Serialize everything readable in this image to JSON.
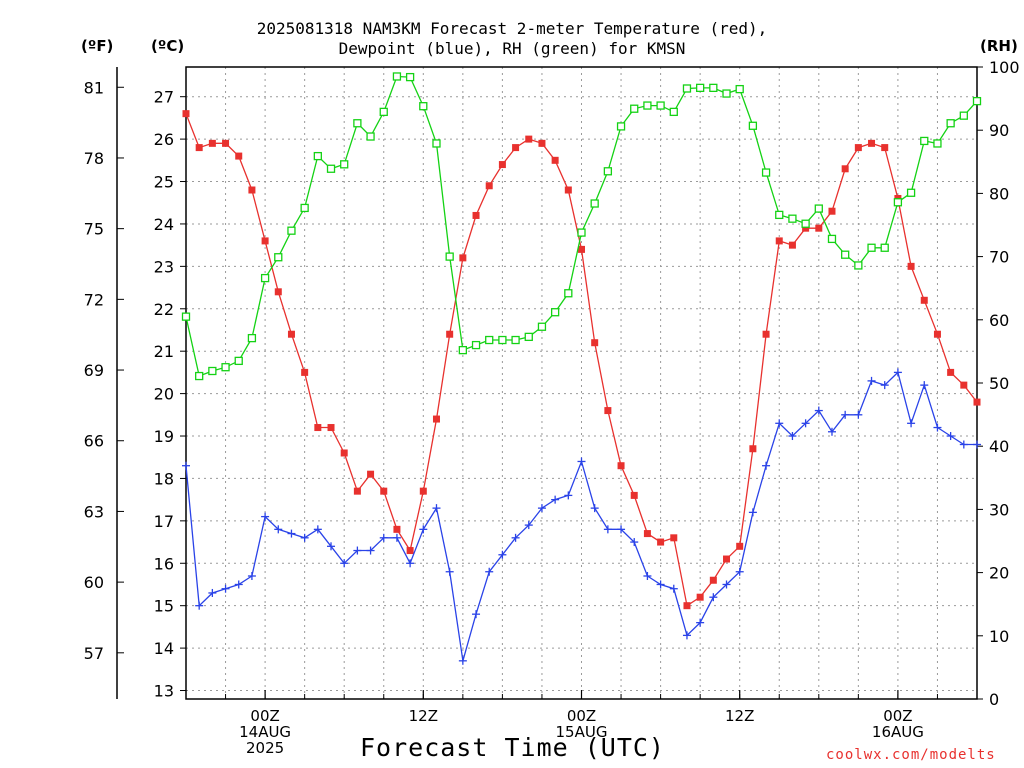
{
  "chart_data": {
    "type": "line",
    "title_line1": "2025081318 NAM3KM Forecast 2-meter Temperature (red),",
    "title_line2": "Dewpoint (blue), RH (green) for KMSN",
    "xlabel": "Forecast Time (UTC)",
    "credit": "coolwx.com/modelts",
    "left_outer_unit": "(ºF)",
    "left_inner_unit": "(ºC)",
    "right_unit": "(RH)",
    "x_start": "2025-08-13 18Z",
    "x_end": "2025-08-16 06Z",
    "x_step_hours": 1,
    "x_ticks": [
      {
        "hour": 6,
        "lines": [
          "00Z",
          "14AUG",
          "2025"
        ]
      },
      {
        "hour": 18,
        "lines": [
          "12Z"
        ]
      },
      {
        "hour": 30,
        "lines": [
          "00Z",
          "15AUG"
        ]
      },
      {
        "hour": 42,
        "lines": [
          "12Z"
        ]
      },
      {
        "hour": 54,
        "lines": [
          "00Z",
          "16AUG"
        ]
      }
    ],
    "ylim_c": [
      12.8,
      27.7
    ],
    "yticks_c": [
      13,
      14,
      15,
      16,
      17,
      18,
      19,
      20,
      21,
      22,
      23,
      24,
      25,
      26,
      27
    ],
    "yticks_f": [
      57,
      60,
      63,
      66,
      69,
      72,
      75,
      78,
      81
    ],
    "ylim_rh": [
      0,
      100
    ],
    "yticks_rh": [
      0,
      10,
      20,
      30,
      40,
      50,
      60,
      70,
      80,
      90,
      100
    ],
    "grid": true,
    "colors": {
      "temperature": "#e8312e",
      "dewpoint": "#2a43e8",
      "rh": "#14d214",
      "grid": "#9a9a9a"
    },
    "series": [
      {
        "key": "temperature",
        "axis": "C",
        "values": [
          26.6,
          25.8,
          25.9,
          25.9,
          25.6,
          24.8,
          23.6,
          22.4,
          21.4,
          20.5,
          19.2,
          19.2,
          18.6,
          17.7,
          18.1,
          17.7,
          16.8,
          16.3,
          17.7,
          19.4,
          21.4,
          23.2,
          24.2,
          24.9,
          25.4,
          25.8,
          26.0,
          25.9,
          25.5,
          24.8,
          23.4,
          21.2,
          19.6,
          18.3,
          17.6,
          16.7,
          16.5,
          16.6,
          15.0,
          15.2,
          15.6,
          16.1,
          16.4,
          18.7,
          21.4,
          23.6,
          23.5,
          23.9,
          23.9,
          24.3,
          25.3,
          25.8,
          25.9,
          25.8,
          24.6,
          23.0,
          22.2,
          21.4,
          20.5,
          20.2,
          19.8
        ]
      },
      {
        "key": "dewpoint",
        "axis": "C",
        "values": [
          18.3,
          15.0,
          15.3,
          15.4,
          15.5,
          15.7,
          17.1,
          16.8,
          16.7,
          16.6,
          16.8,
          16.4,
          16.0,
          16.3,
          16.3,
          16.6,
          16.6,
          16.0,
          16.8,
          17.3,
          15.8,
          13.7,
          14.8,
          15.8,
          16.2,
          16.6,
          16.9,
          17.3,
          17.5,
          17.6,
          18.4,
          17.3,
          16.8,
          16.8,
          16.5,
          15.7,
          15.5,
          15.4,
          14.3,
          14.6,
          15.2,
          15.5,
          15.8,
          17.2,
          18.3,
          19.3,
          19.0,
          19.3,
          19.6,
          19.1,
          19.5,
          19.5,
          20.3,
          20.2,
          20.5,
          19.3,
          20.2,
          19.2,
          19.0,
          18.8,
          18.8
        ]
      },
      {
        "key": "rh",
        "axis": "RH",
        "values": [
          60.5,
          51.1,
          51.9,
          52.5,
          53.5,
          57.1,
          66.6,
          69.9,
          74.1,
          77.7,
          85.9,
          83.9,
          84.6,
          91.1,
          89.0,
          92.9,
          98.5,
          98.4,
          93.8,
          87.9,
          70.0,
          55.2,
          56.0,
          56.8,
          56.8,
          56.8,
          57.3,
          58.9,
          61.2,
          64.2,
          73.8,
          78.4,
          83.5,
          90.6,
          93.4,
          93.9,
          93.9,
          92.9,
          96.6,
          96.7,
          96.7,
          95.8,
          96.5,
          90.7,
          83.3,
          76.6,
          76.0,
          75.2,
          77.6,
          72.8,
          70.3,
          68.6,
          71.4,
          71.4,
          78.6,
          80.1,
          88.3,
          87.9,
          91.1,
          92.3,
          94.6
        ]
      }
    ]
  }
}
